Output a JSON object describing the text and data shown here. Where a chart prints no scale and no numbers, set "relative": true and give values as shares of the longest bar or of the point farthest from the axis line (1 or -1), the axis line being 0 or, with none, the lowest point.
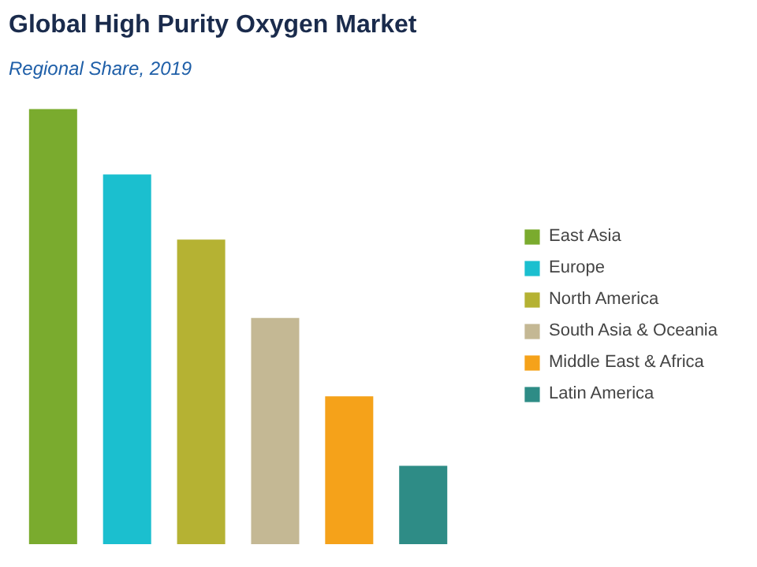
{
  "chart_data": {
    "type": "bar",
    "title": "Global High Purity Oxygen Market",
    "subtitle": "Regional Share, 2019",
    "relative": true,
    "stacked": true,
    "categories": [
      null,
      null,
      null,
      null,
      null,
      null
    ],
    "series": [
      {
        "name": "East Asia",
        "color": "#7aab2e",
        "values": [
          1,
          null,
          null,
          null,
          null,
          null
        ]
      },
      {
        "name": "Europe",
        "color": "#1bbfcf",
        "values": [
          null,
          0.85,
          null,
          null,
          null,
          null
        ]
      },
      {
        "name": "North America",
        "color": "#b5b233",
        "values": [
          null,
          null,
          0.7,
          null,
          null,
          null
        ]
      },
      {
        "name": "South Asia & Oceania",
        "color": "#c4b894",
        "values": [
          null,
          null,
          null,
          0.52,
          null,
          null
        ]
      },
      {
        "name": "Middle East & Africa",
        "color": "#f5a21a",
        "values": [
          null,
          null,
          null,
          null,
          0.34,
          null
        ]
      },
      {
        "name": "Latin America",
        "color": "#2e8c86",
        "values": [
          null,
          null,
          null,
          null,
          null,
          0.18
        ]
      }
    ],
    "legend": "right"
  }
}
